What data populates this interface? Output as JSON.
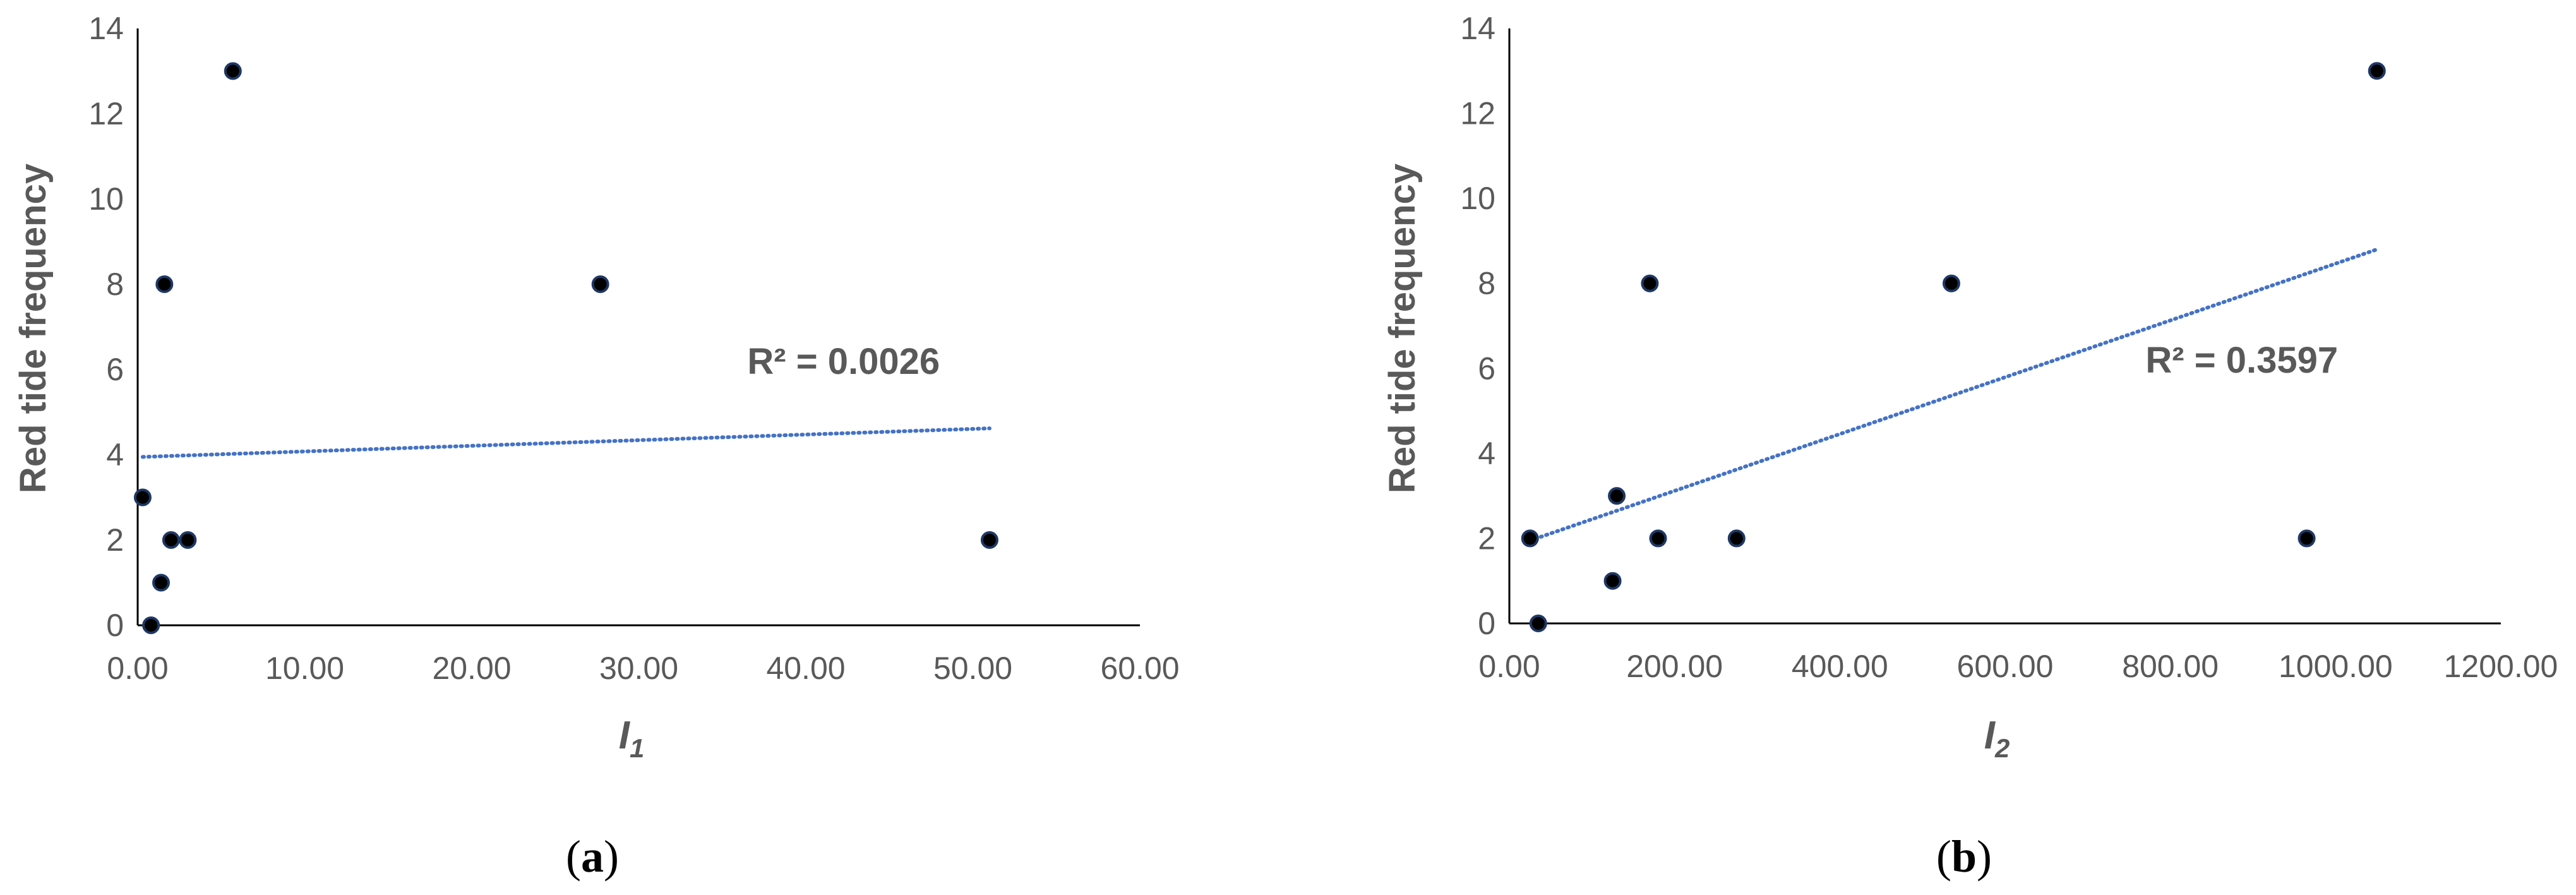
{
  "colors": {
    "axis": "#000000",
    "text": "#595959",
    "trendline": "#4472C4",
    "marker_fill": "#000000",
    "marker_edge": "#1F3864"
  },
  "chart_data": [
    {
      "type": "scatter",
      "panel_label": "a",
      "xlabel": "I",
      "xlabel_subscript": "1",
      "ylabel": "Red tide frequency",
      "xlim": [
        0,
        60
      ],
      "ylim": [
        0,
        14
      ],
      "xticks": [
        "0.00",
        "10.00",
        "20.00",
        "30.00",
        "40.00",
        "50.00",
        "60.00"
      ],
      "yticks": [
        "0",
        "2",
        "4",
        "6",
        "8",
        "10",
        "12",
        "14"
      ],
      "points": [
        {
          "x": 0.3,
          "y": 3
        },
        {
          "x": 0.8,
          "y": 0
        },
        {
          "x": 1.4,
          "y": 1
        },
        {
          "x": 1.6,
          "y": 8
        },
        {
          "x": 2.0,
          "y": 2
        },
        {
          "x": 3.0,
          "y": 2
        },
        {
          "x": 5.7,
          "y": 13
        },
        {
          "x": 27.7,
          "y": 8
        },
        {
          "x": 51.0,
          "y": 2
        }
      ],
      "trendline": {
        "style": "dotted",
        "x": [
          0.3,
          51.0
        ],
        "y": [
          3.95,
          4.62
        ]
      },
      "r2_label": "R² = 0.0026",
      "r2_anchor": {
        "x": 36.5,
        "y": 5.9
      }
    },
    {
      "type": "scatter",
      "panel_label": "b",
      "xlabel": "I",
      "xlabel_subscript": "2",
      "ylabel": "Red tide frequency",
      "xlim": [
        0,
        1200
      ],
      "ylim": [
        0,
        14
      ],
      "xticks": [
        "0.00",
        "200.00",
        "400.00",
        "600.00",
        "800.00",
        "1000.00",
        "1200.00"
      ],
      "yticks": [
        "0",
        "2",
        "4",
        "6",
        "8",
        "10",
        "12",
        "14"
      ],
      "points": [
        {
          "x": 25,
          "y": 2
        },
        {
          "x": 35,
          "y": 0
        },
        {
          "x": 125,
          "y": 1
        },
        {
          "x": 130,
          "y": 3
        },
        {
          "x": 170,
          "y": 8
        },
        {
          "x": 180,
          "y": 2
        },
        {
          "x": 275,
          "y": 2
        },
        {
          "x": 535,
          "y": 8
        },
        {
          "x": 965,
          "y": 2
        },
        {
          "x": 1050,
          "y": 13
        }
      ],
      "trendline": {
        "style": "dotted",
        "x": [
          25,
          1050
        ],
        "y": [
          1.95,
          8.8
        ]
      },
      "r2_label": "R² = 0.3597",
      "r2_anchor": {
        "x": 770,
        "y": 5.9
      }
    }
  ]
}
